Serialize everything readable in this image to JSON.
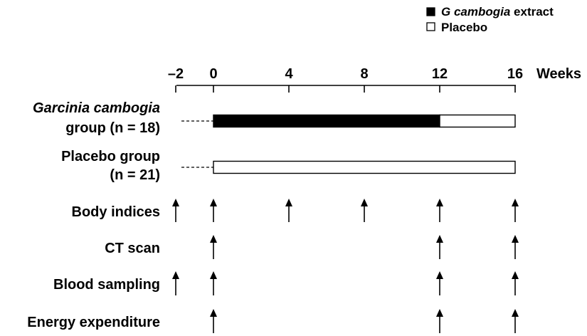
{
  "legend": {
    "items": [
      {
        "key": "extract",
        "text_italic": "G cambogia",
        "text_rest": " extract",
        "fill": "#000000"
      },
      {
        "key": "placebo",
        "text_italic": "",
        "text_rest": "Placebo",
        "fill": "#ffffff"
      }
    ]
  },
  "timeline": {
    "unit_label": "Weeks",
    "ticks": [
      {
        "value": -2,
        "label": "–2"
      },
      {
        "value": 0,
        "label": "0"
      },
      {
        "value": 4,
        "label": "4"
      },
      {
        "value": 8,
        "label": "8"
      },
      {
        "value": 12,
        "label": "12"
      },
      {
        "value": 16,
        "label": "16"
      }
    ]
  },
  "groups": [
    {
      "key": "garcinia",
      "name_line1": "Garcinia cambogia",
      "name_line1_italic": true,
      "name_line2": "group (n = 18)",
      "lead_in": [
        -2,
        0
      ],
      "segments": [
        {
          "from": 0,
          "to": 12,
          "fill": "#000000"
        },
        {
          "from": 12,
          "to": 16,
          "fill": "#ffffff"
        }
      ]
    },
    {
      "key": "placebo",
      "name_line1": "Placebo group",
      "name_line1_italic": false,
      "name_line2": "(n = 21)",
      "lead_in": [
        -2,
        0
      ],
      "segments": [
        {
          "from": 0,
          "to": 16,
          "fill": "#ffffff"
        }
      ]
    }
  ],
  "measurements": [
    {
      "key": "body-indices",
      "label": "Body indices",
      "weeks": [
        -2,
        0,
        4,
        8,
        12,
        16
      ]
    },
    {
      "key": "ct-scan",
      "label": "CT scan",
      "weeks": [
        0,
        12,
        16
      ]
    },
    {
      "key": "blood-sampling",
      "label": "Blood sampling",
      "weeks": [
        -2,
        0,
        12,
        16
      ]
    },
    {
      "key": "energy-expenditure",
      "label": "Energy expenditure",
      "weeks": [
        0,
        12,
        16
      ]
    }
  ]
}
